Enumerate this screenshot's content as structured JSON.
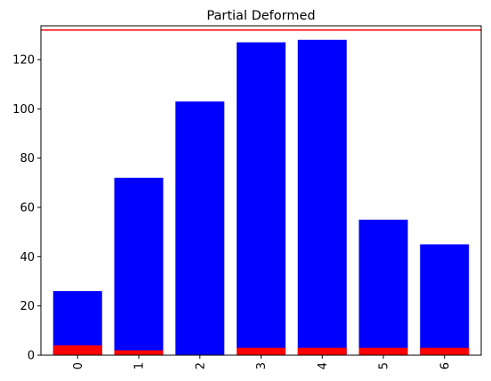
{
  "chart_data": {
    "type": "bar",
    "title": "Partial Deformed",
    "xlabel": "",
    "ylabel": "",
    "categories": [
      "0",
      "1",
      "2",
      "3",
      "4",
      "5",
      "6"
    ],
    "series": [
      {
        "values": [
          26,
          72,
          103,
          127,
          128,
          55,
          45
        ],
        "color": "#0000ff"
      },
      {
        "values": [
          4,
          2,
          0,
          3,
          3,
          3,
          3
        ],
        "color": "#ff0000"
      }
    ],
    "reference_line": {
      "value": 132,
      "color": "#ff0000"
    },
    "ylim": [
      0,
      133.7
    ],
    "yticks": [
      0,
      20,
      40,
      60,
      80,
      100,
      120
    ],
    "xtick_rotation": 90,
    "grid": false,
    "legend": "none"
  }
}
